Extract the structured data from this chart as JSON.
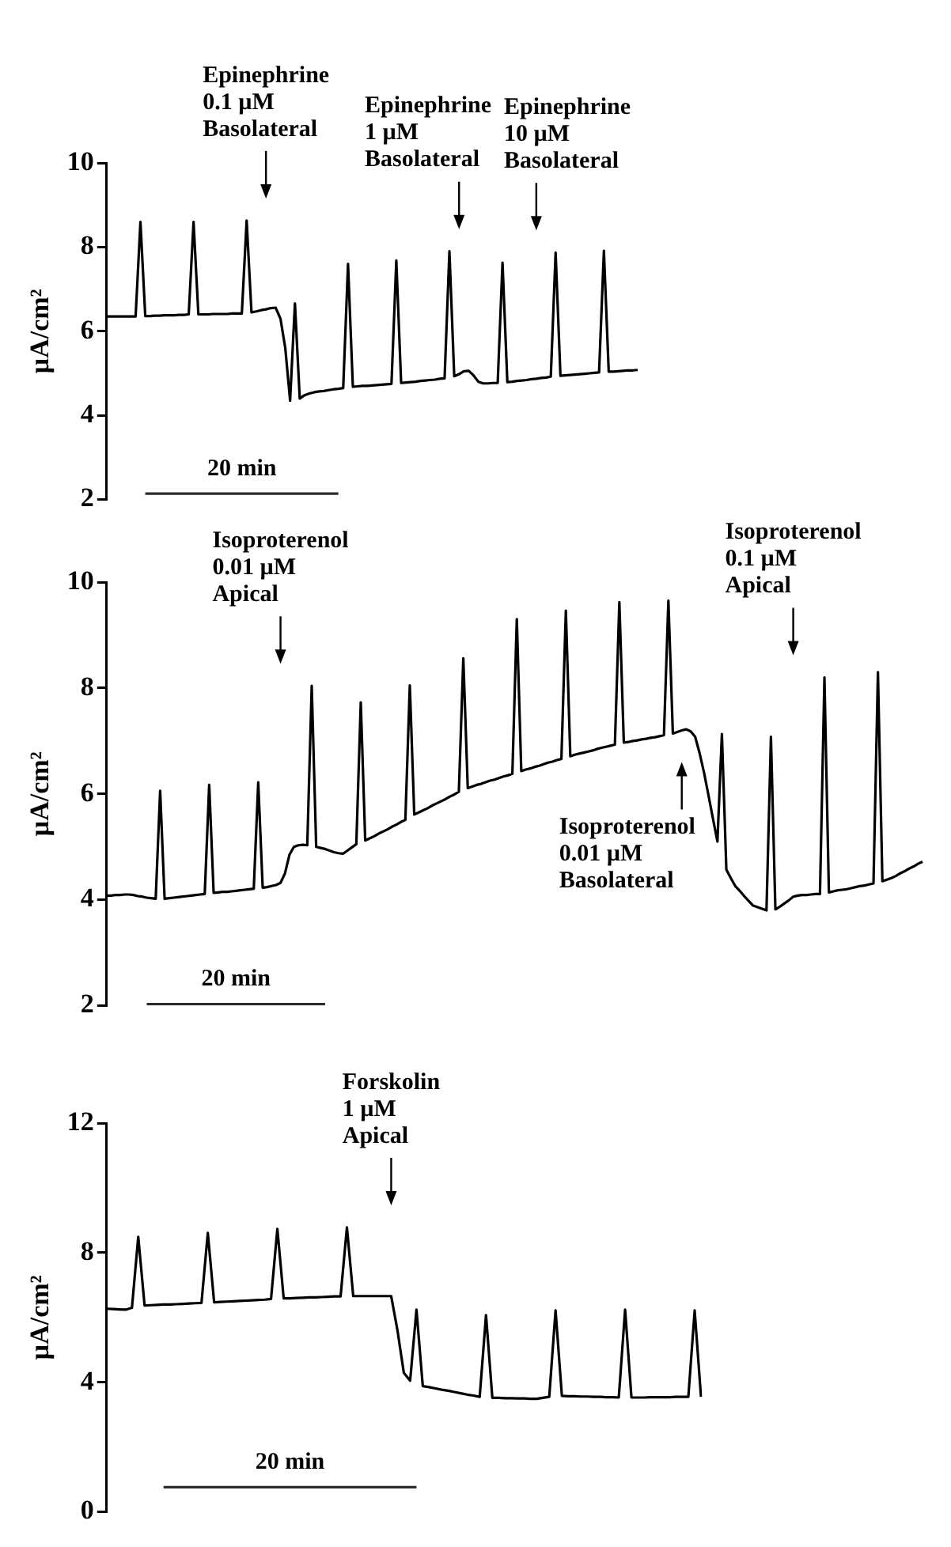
{
  "chart_data": [
    {
      "type": "line",
      "ylabel": "µA/cm²",
      "ylim": [
        2,
        10
      ],
      "yticks": [
        2,
        4,
        6,
        8,
        10
      ],
      "tick_labels": "y",
      "grid": false,
      "legend": false,
      "marker": "none",
      "line_style": "solid",
      "categories": [
        null,
        null,
        null,
        null,
        null,
        null,
        null,
        null,
        null,
        null,
        null,
        null,
        null,
        null,
        null,
        null,
        null,
        null,
        null,
        null,
        null,
        null,
        null,
        null,
        null,
        null,
        null,
        null,
        null,
        null,
        null,
        null,
        null,
        null,
        null,
        null,
        null,
        null,
        null,
        null,
        null,
        null,
        null,
        null,
        null,
        null,
        null,
        null,
        null,
        null,
        null,
        null,
        null,
        null,
        null,
        null,
        null,
        null,
        null,
        null,
        null,
        null,
        null,
        null,
        null,
        null,
        null,
        null,
        null,
        null,
        null,
        null,
        null,
        null,
        null,
        null,
        null,
        null,
        null,
        null,
        null,
        null,
        null,
        null,
        null,
        null,
        null,
        null,
        null,
        null,
        null,
        null,
        null,
        null,
        null,
        null,
        null,
        null,
        null,
        null,
        null,
        null,
        null,
        null,
        null,
        null,
        null,
        null,
        null,
        null,
        null
      ],
      "series": [
        {
          "color": "#000000",
          "values": [
            6.35,
            6.35,
            6.35,
            6.35,
            6.35,
            6.35,
            6.35,
            8.6,
            6.36,
            6.36,
            6.37,
            6.37,
            6.38,
            6.38,
            6.38,
            6.39,
            6.39,
            6.4,
            8.6,
            6.4,
            6.4,
            6.4,
            6.41,
            6.41,
            6.41,
            6.41,
            6.42,
            6.42,
            6.42,
            8.63,
            6.45,
            6.47,
            6.5,
            6.52,
            6.55,
            6.56,
            6.3,
            5.6,
            4.35,
            6.66,
            4.4,
            4.48,
            4.52,
            4.55,
            4.57,
            4.58,
            4.6,
            4.62,
            4.63,
            4.65,
            7.6,
            4.68,
            4.69,
            4.7,
            4.7,
            4.71,
            4.72,
            4.73,
            4.74,
            4.75,
            7.68,
            4.77,
            4.78,
            4.79,
            4.8,
            4.82,
            4.83,
            4.84,
            4.85,
            4.87,
            4.88,
            7.9,
            4.93,
            4.98,
            5.05,
            5.06,
            4.95,
            4.8,
            4.76,
            4.76,
            4.77,
            4.77,
            7.63,
            4.79,
            4.8,
            4.82,
            4.83,
            4.84,
            4.86,
            4.87,
            4.89,
            4.9,
            4.92,
            7.87,
            4.94,
            4.95,
            4.96,
            4.97,
            4.98,
            4.99,
            5.0,
            5.01,
            5.02,
            7.91,
            5.04,
            5.04,
            5.05,
            5.06,
            5.07,
            5.07,
            5.08
          ]
        },
        {
          "color": "#2b2b2b",
          "values": [
            null,
            null,
            null,
            null,
            null,
            null,
            null,
            null,
            2.14,
            2.14,
            2.14,
            2.14,
            2.14,
            2.14,
            2.14,
            2.14,
            2.14,
            2.14,
            2.14,
            2.14,
            2.14,
            2.14,
            2.14,
            2.14,
            2.14,
            2.14,
            2.14,
            2.14,
            2.14,
            2.14,
            2.14,
            2.14,
            2.14,
            2.14,
            2.14,
            2.14,
            2.14,
            2.14,
            2.14,
            2.14,
            2.14,
            2.14,
            2.14,
            2.14,
            2.14,
            2.14,
            2.14,
            2.14,
            2.14,
            null,
            null,
            null,
            null,
            null,
            null,
            null,
            null,
            null,
            null,
            null,
            null,
            null,
            null,
            null,
            null,
            null,
            null,
            null,
            null,
            null,
            null,
            null,
            null,
            null,
            null,
            null,
            null,
            null,
            null,
            null,
            null,
            null,
            null,
            null,
            null,
            null,
            null,
            null,
            null,
            null,
            null,
            null,
            null,
            null,
            null,
            null,
            null,
            null,
            null,
            null,
            null,
            null,
            null,
            null,
            null,
            null,
            null,
            null,
            null,
            null,
            null
          ]
        }
      ],
      "annotations": [
        "Epinephrine\n0.1 µM\nBasolateral",
        "Epinephrine\n1 µM\nBasolateral",
        "Epinephrine\n10 µM\nBasolateral",
        "20 min"
      ]
    },
    {
      "type": "line",
      "ylabel": "µA/cm²",
      "ylim": [
        2,
        10
      ],
      "yticks": [
        2,
        4,
        6,
        8,
        10
      ],
      "tick_labels": "y",
      "grid": false,
      "legend": false,
      "marker": "none",
      "line_style": "solid",
      "categories": [
        null,
        null,
        null,
        null,
        null,
        null,
        null,
        null,
        null,
        null,
        null,
        null,
        null,
        null,
        null,
        null,
        null,
        null,
        null,
        null,
        null,
        null,
        null,
        null,
        null,
        null,
        null,
        null,
        null,
        null,
        null,
        null,
        null,
        null,
        null,
        null,
        null,
        null,
        null,
        null,
        null,
        null,
        null,
        null,
        null,
        null,
        null,
        null,
        null,
        null,
        null,
        null,
        null,
        null,
        null,
        null,
        null,
        null,
        null,
        null,
        null,
        null,
        null,
        null,
        null,
        null,
        null,
        null,
        null,
        null,
        null,
        null,
        null,
        null,
        null,
        null,
        null,
        null,
        null,
        null,
        null,
        null,
        null,
        null,
        null,
        null,
        null,
        null,
        null,
        null,
        null,
        null,
        null,
        null,
        null,
        null,
        null,
        null,
        null,
        null,
        null,
        null,
        null,
        null,
        null,
        null,
        null,
        null,
        null,
        null,
        null,
        null,
        null,
        null,
        null,
        null,
        null,
        null,
        null,
        null,
        null,
        null,
        null,
        null,
        null,
        null,
        null,
        null,
        null,
        null,
        null,
        null,
        null,
        null,
        null,
        null,
        null,
        null,
        null,
        null,
        null,
        null,
        null,
        null,
        null,
        null,
        null,
        null,
        null,
        null,
        null,
        null,
        null,
        null,
        null,
        null,
        null,
        null,
        null,
        null,
        null,
        null,
        null,
        null,
        null,
        null,
        null,
        null,
        null,
        null,
        null,
        null,
        null,
        null,
        null,
        null,
        null,
        null,
        null,
        null,
        null,
        null,
        null,
        null
      ],
      "series": [
        {
          "color": "#000000",
          "values": [
            4.08,
            4.08,
            4.09,
            4.09,
            4.1,
            4.1,
            4.09,
            4.07,
            4.06,
            4.04,
            4.03,
            4.02,
            6.06,
            4.02,
            4.03,
            4.04,
            4.05,
            4.06,
            4.07,
            4.08,
            4.09,
            4.1,
            4.11,
            6.17,
            4.13,
            4.14,
            4.15,
            4.15,
            4.16,
            4.17,
            4.18,
            4.19,
            4.2,
            4.21,
            6.22,
            4.23,
            4.24,
            4.26,
            4.28,
            4.32,
            4.5,
            4.85,
            5.0,
            5.03,
            5.04,
            5.03,
            8.04,
            5.0,
            4.98,
            4.96,
            4.93,
            4.9,
            4.88,
            4.87,
            4.93,
            4.99,
            5.05,
            7.73,
            5.12,
            5.16,
            5.2,
            5.25,
            5.29,
            5.33,
            5.38,
            5.42,
            5.47,
            5.51,
            8.05,
            5.61,
            5.65,
            5.69,
            5.73,
            5.78,
            5.82,
            5.86,
            5.9,
            5.95,
            5.99,
            6.04,
            8.56,
            6.11,
            6.14,
            6.17,
            6.19,
            6.22,
            6.25,
            6.27,
            6.3,
            6.33,
            6.35,
            6.38,
            9.3,
            6.43,
            6.46,
            6.48,
            6.51,
            6.53,
            6.56,
            6.59,
            6.61,
            6.64,
            6.66,
            9.46,
            6.71,
            6.74,
            6.76,
            6.78,
            6.8,
            6.82,
            6.85,
            6.87,
            6.89,
            6.91,
            6.93,
            9.62,
            6.97,
            6.98,
            7.0,
            7.01,
            7.03,
            7.04,
            7.06,
            7.07,
            7.09,
            7.11,
            9.65,
            7.14,
            7.17,
            7.2,
            7.22,
            7.18,
            7.08,
            6.77,
            6.4,
            5.97,
            5.53,
            5.1,
            7.13,
            4.57,
            4.41,
            4.26,
            4.17,
            4.07,
            3.98,
            3.89,
            3.86,
            3.83,
            3.8,
            7.08,
            3.82,
            3.87,
            3.93,
            3.99,
            4.06,
            4.08,
            4.09,
            4.09,
            4.1,
            4.11,
            4.11,
            8.2,
            4.14,
            4.16,
            4.18,
            4.19,
            4.2,
            4.22,
            4.24,
            4.26,
            4.27,
            4.29,
            4.31,
            8.3,
            4.35,
            4.38,
            4.41,
            4.45,
            4.5,
            4.54,
            4.59,
            4.63,
            4.68,
            4.72
          ]
        },
        {
          "color": "#2b2b2b",
          "values": [
            null,
            null,
            null,
            null,
            null,
            null,
            null,
            null,
            null,
            2.03,
            2.03,
            2.03,
            2.03,
            2.03,
            2.03,
            2.03,
            2.03,
            2.03,
            2.03,
            2.03,
            2.03,
            2.03,
            2.03,
            2.03,
            2.03,
            2.03,
            2.03,
            2.03,
            2.03,
            2.03,
            2.03,
            2.03,
            2.03,
            2.03,
            2.03,
            2.03,
            2.03,
            2.03,
            2.03,
            2.03,
            2.03,
            2.03,
            2.03,
            2.03,
            2.03,
            2.03,
            2.03,
            2.03,
            2.03,
            2.03,
            null,
            null,
            null,
            null,
            null,
            null,
            null,
            null,
            null,
            null,
            null,
            null,
            null,
            null,
            null,
            null,
            null,
            null,
            null,
            null,
            null,
            null,
            null,
            null,
            null,
            null,
            null,
            null,
            null,
            null,
            null,
            null,
            null,
            null,
            null,
            null,
            null,
            null,
            null,
            null,
            null,
            null,
            null,
            null,
            null,
            null,
            null,
            null,
            null,
            null,
            null,
            null,
            null,
            null,
            null,
            null,
            null,
            null,
            null,
            null,
            null,
            null,
            null,
            null,
            null,
            null,
            null,
            null,
            null,
            null,
            null,
            null,
            null,
            null,
            null,
            null,
            null,
            null,
            null,
            null,
            null,
            null,
            null,
            null,
            null,
            null,
            null,
            null,
            null,
            null,
            null,
            null,
            null,
            null,
            null,
            null,
            null,
            null,
            null,
            null,
            null,
            null,
            null,
            null,
            null,
            null,
            null,
            null,
            null,
            null,
            null,
            null,
            null,
            null,
            null,
            null,
            null,
            null,
            null,
            null,
            null,
            null,
            null,
            null,
            null,
            null,
            null,
            null,
            null,
            null,
            null,
            null,
            null,
            null
          ]
        }
      ],
      "annotations": [
        "Isoproterenol\n0.01 µM\nApical",
        "Isoproterenol\n0.01 µM\nBasolateral",
        "Isoproterenol\n0.1 µM\nApical",
        "20 min"
      ]
    },
    {
      "type": "line",
      "ylabel": "µA/cm²",
      "ylim": [
        0,
        12
      ],
      "yticks": [
        0,
        4,
        8,
        12
      ],
      "tick_labels": "y",
      "grid": false,
      "legend": false,
      "marker": "none",
      "line_style": "solid",
      "categories": [
        null,
        null,
        null,
        null,
        null,
        null,
        null,
        null,
        null,
        null,
        null,
        null,
        null,
        null,
        null,
        null,
        null,
        null,
        null,
        null,
        null,
        null,
        null,
        null,
        null,
        null,
        null,
        null,
        null,
        null,
        null,
        null,
        null,
        null,
        null,
        null,
        null,
        null,
        null,
        null,
        null,
        null,
        null,
        null,
        null,
        null,
        null,
        null,
        null,
        null,
        null,
        null,
        null,
        null,
        null,
        null,
        null,
        null,
        null,
        null,
        null,
        null,
        null,
        null,
        null,
        null,
        null,
        null,
        null,
        null,
        null,
        null,
        null,
        null,
        null,
        null,
        null,
        null,
        null,
        null,
        null,
        null,
        null,
        null,
        null,
        null,
        null,
        null,
        null,
        null,
        null,
        null,
        null,
        null,
        null
      ],
      "series": [
        {
          "color": "#000000",
          "values": [
            6.27,
            6.26,
            6.25,
            6.24,
            6.3,
            8.49,
            6.37,
            6.38,
            6.39,
            6.4,
            6.4,
            6.41,
            6.42,
            6.43,
            6.44,
            6.45,
            8.61,
            6.47,
            6.48,
            6.49,
            6.5,
            6.51,
            6.52,
            6.53,
            6.54,
            6.55,
            6.57,
            8.73,
            6.59,
            6.59,
            6.6,
            6.61,
            6.62,
            6.62,
            6.63,
            6.64,
            6.65,
            6.65,
            8.78,
            6.66,
            6.66,
            6.66,
            6.66,
            6.66,
            6.66,
            6.66,
            5.6,
            4.29,
            4.05,
            6.24,
            3.88,
            3.85,
            3.81,
            3.77,
            3.74,
            3.7,
            3.66,
            3.62,
            3.59,
            3.55,
            6.07,
            3.52,
            3.52,
            3.51,
            3.51,
            3.5,
            3.5,
            3.49,
            3.49,
            3.52,
            3.55,
            6.22,
            3.58,
            3.57,
            3.57,
            3.56,
            3.56,
            3.55,
            3.55,
            3.54,
            3.54,
            3.53,
            6.24,
            3.53,
            3.53,
            3.53,
            3.54,
            3.54,
            3.54,
            3.54,
            3.55,
            3.55,
            3.55,
            6.22,
            3.55
          ]
        },
        {
          "color": "#2b2b2b",
          "values": [
            null,
            null,
            null,
            null,
            null,
            null,
            null,
            null,
            null,
            0.76,
            0.76,
            0.76,
            0.76,
            0.76,
            0.76,
            0.76,
            0.76,
            0.76,
            0.76,
            0.76,
            0.76,
            0.76,
            0.76,
            0.76,
            0.76,
            0.76,
            0.76,
            0.76,
            0.76,
            0.76,
            0.76,
            0.76,
            0.76,
            0.76,
            0.76,
            0.76,
            0.76,
            0.76,
            0.76,
            0.76,
            0.76,
            0.76,
            0.76,
            0.76,
            0.76,
            0.76,
            0.76,
            0.76,
            0.76,
            0.76,
            null,
            null,
            null,
            null,
            null,
            null,
            null,
            null,
            null,
            null,
            null,
            null,
            null,
            null,
            null,
            null,
            null,
            null,
            null,
            null,
            null,
            null,
            null,
            null,
            null,
            null,
            null,
            null,
            null,
            null,
            null,
            null,
            null,
            null,
            null,
            null,
            null,
            null,
            null,
            null,
            null,
            null,
            null,
            null,
            null
          ]
        }
      ],
      "annotations": [
        "Forskolin\n1 µM\nApical",
        "20 min"
      ]
    }
  ]
}
